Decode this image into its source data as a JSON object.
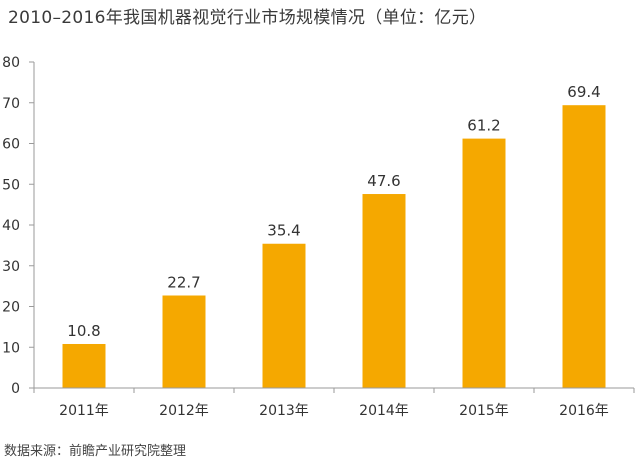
{
  "title": "2010–2016年我国机器视觉行业市场规模情况（单位：亿元）",
  "source": "数据来源：前瞻产业研究院整理",
  "colors": {
    "bar": "#F5A800",
    "axis": "#9a9a9a",
    "text": "#333333"
  },
  "chart_data": {
    "type": "bar",
    "title": "2010–2016年我国机器视觉行业市场规模情况（单位：亿元）",
    "xlabel": "",
    "ylabel": "",
    "categories": [
      "2011年",
      "2012年",
      "2013年",
      "2014年",
      "2015年",
      "2016年"
    ],
    "values": [
      10.8,
      22.7,
      35.4,
      47.6,
      61.2,
      69.4
    ],
    "data_labels": [
      "10.8",
      "22.7",
      "35.4",
      "47.6",
      "61.2",
      "69.4"
    ],
    "ylim": [
      0,
      80
    ],
    "yticks": [
      0,
      10,
      20,
      30,
      40,
      50,
      60,
      70,
      80
    ],
    "grid": false,
    "legend": "none"
  }
}
